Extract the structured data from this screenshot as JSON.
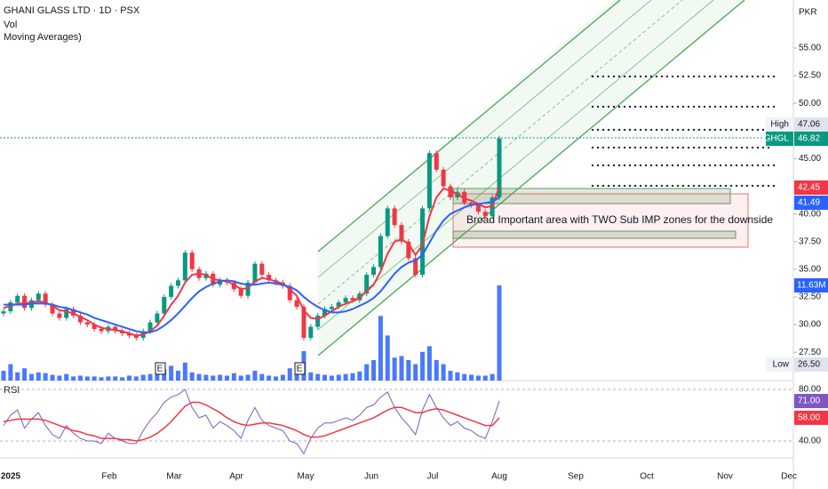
{
  "chart_data": {
    "type": "candlestick",
    "title": "GHANI GLASS LTD · 1D · PSX",
    "indicators": [
      "Vol",
      "Moving Averages)"
    ],
    "currency": "PKR",
    "first_open": 31.0,
    "series": [
      {
        "name": "GHGL",
        "up_color": "#089981",
        "down_color": "#f23645",
        "values": [
          31.2,
          32.0,
          32.6,
          31.5,
          32.2,
          32.8,
          31.8,
          31.0,
          30.6,
          31.4,
          30.8,
          30.2,
          30.0,
          29.6,
          29.4,
          29.8,
          29.4,
          29.2,
          29.0,
          28.8,
          29.4,
          30.2,
          31.0,
          32.5,
          33.5,
          34.0,
          36.5,
          35.0,
          34.2,
          34.6,
          33.6,
          34.0,
          33.8,
          33.2,
          32.6,
          33.8,
          35.5,
          34.5,
          34.0,
          33.8,
          33.5,
          32.2,
          31.6,
          28.8,
          29.8,
          30.8,
          31.4,
          31.6,
          32.0,
          32.4,
          32.2,
          32.8,
          34.5,
          35.2,
          38.0,
          40.5,
          39.0,
          37.5,
          36.0,
          34.5,
          40.5,
          45.5,
          44.0,
          42.5,
          41.5,
          42.0,
          41.0,
          40.8,
          40.2,
          39.8,
          41.5,
          46.82
        ]
      },
      {
        "color": "#f23645",
        "values": [
          31.5,
          31.7,
          31.9,
          31.9,
          32.0,
          32.1,
          32.0,
          31.7,
          31.3,
          31.2,
          31.0,
          30.7,
          30.4,
          30.0,
          29.7,
          29.6,
          29.5,
          29.4,
          29.2,
          29.0,
          29.1,
          29.4,
          29.9,
          30.8,
          31.8,
          32.6,
          33.8,
          34.5,
          34.6,
          34.5,
          34.1,
          34.0,
          33.9,
          33.6,
          33.2,
          33.3,
          33.9,
          34.2,
          34.1,
          33.9,
          33.7,
          33.2,
          32.6,
          31.3,
          30.6,
          30.5,
          30.8,
          31.2,
          31.6,
          31.9,
          32.1,
          32.4,
          33.0,
          33.6,
          34.8,
          36.4,
          37.5,
          37.7,
          37.3,
          36.3,
          37.2,
          39.8,
          41.5,
          42.3,
          42.1,
          41.8,
          41.4,
          41.2,
          40.9,
          40.6,
          40.7,
          42.45
        ]
      },
      {
        "color": "#2962ff",
        "values": [
          31.8,
          31.8,
          31.8,
          31.8,
          31.9,
          31.9,
          31.9,
          31.8,
          31.6,
          31.5,
          31.3,
          31.1,
          30.9,
          30.6,
          30.4,
          30.2,
          30.0,
          29.8,
          29.6,
          29.4,
          29.3,
          29.3,
          29.5,
          29.9,
          30.4,
          31.0,
          31.7,
          32.4,
          33.0,
          33.4,
          33.7,
          33.9,
          34.0,
          33.9,
          33.7,
          33.6,
          33.6,
          33.7,
          33.8,
          33.7,
          33.6,
          33.4,
          33.1,
          32.5,
          32.0,
          31.6,
          31.3,
          31.1,
          31.1,
          31.2,
          31.4,
          31.7,
          32.0,
          32.4,
          33.0,
          33.8,
          34.6,
          35.2,
          35.6,
          35.8,
          36.3,
          37.4,
          38.5,
          39.4,
          40.0,
          40.3,
          40.6,
          40.8,
          40.9,
          41.0,
          41.1,
          41.49
        ]
      }
    ],
    "volume": {
      "color": "#2962ff",
      "values": [
        1.2,
        2.0,
        1.0,
        1.5,
        0.8,
        1.0,
        0.9,
        0.7,
        0.6,
        0.8,
        0.5,
        0.6,
        0.5,
        0.5,
        0.4,
        0.5,
        0.5,
        0.4,
        0.6,
        0.5,
        0.7,
        0.8,
        1.0,
        1.4,
        1.8,
        1.2,
        2.2,
        1.0,
        0.8,
        0.7,
        0.6,
        0.7,
        0.6,
        0.9,
        0.6,
        0.7,
        1.2,
        0.8,
        0.6,
        0.5,
        0.7,
        1.5,
        1.8,
        3.6,
        1.0,
        0.8,
        0.7,
        0.6,
        0.7,
        0.8,
        0.9,
        1.1,
        2.0,
        2.5,
        7.9,
        5.5,
        2.8,
        3.0,
        2.5,
        2.0,
        3.5,
        4.2,
        2.5,
        2.0,
        1.2,
        1.0,
        0.8,
        0.7,
        0.6,
        0.6,
        0.8,
        11.63
      ],
      "last_label": "11.63M"
    },
    "ylim": [
      24.94,
      59.34
    ],
    "yticks": [
      {
        "value": 27.5,
        "label": "27.50"
      },
      {
        "value": 30,
        "label": "30.00"
      },
      {
        "value": 32.5,
        "label": "32.50"
      },
      {
        "value": 35,
        "label": "35.00"
      },
      {
        "value": 37.5,
        "label": "37.50"
      },
      {
        "value": 40,
        "label": "40.00"
      },
      {
        "value": 45,
        "label": "45.00"
      },
      {
        "value": 50,
        "label": "50.00"
      },
      {
        "value": 52.5,
        "label": "52.50"
      },
      {
        "value": 55,
        "label": "55.00"
      }
    ],
    "price_tags": [
      {
        "name": "High",
        "value": 47.06
      },
      {
        "name": "GHGL",
        "value": 46.82
      },
      {
        "value": 42.45
      },
      {
        "value": 41.49
      },
      {
        "name": "Low",
        "value": 26.5,
        "label": "26.50"
      }
    ],
    "events": [
      "E",
      "E"
    ],
    "annotation": "Broad Important area with TWO Sub IMP zones for the downside",
    "rsi": {
      "title": "RSI",
      "ylim": [
        26.9,
        86.9
      ],
      "yticks": [
        {
          "value": 80,
          "label": "80.00"
        },
        {
          "value": 40,
          "label": "40.00"
        }
      ],
      "series": [
        {
          "color": "#7e57c2",
          "values": [
            52,
            60,
            64,
            50,
            57,
            62,
            52,
            45,
            42,
            52,
            46,
            42,
            40,
            40,
            38,
            46,
            42,
            40,
            38,
            38,
            48,
            56,
            62,
            70,
            74,
            76,
            80,
            66,
            58,
            60,
            50,
            55,
            52,
            48,
            42,
            56,
            66,
            56,
            52,
            50,
            48,
            40,
            38,
            30,
            42,
            50,
            54,
            54,
            56,
            58,
            56,
            60,
            66,
            68,
            74,
            78,
            66,
            58,
            52,
            45,
            64,
            76,
            66,
            58,
            52,
            55,
            50,
            48,
            44,
            42,
            55,
            71
          ],
          "last_label": "71.00"
        },
        {
          "color": "#f23645",
          "values": [
            55,
            56,
            57,
            57,
            57,
            57,
            56,
            54,
            52,
            50,
            48,
            47,
            45,
            44,
            42,
            42,
            42,
            41,
            41,
            40,
            41,
            43,
            46,
            50,
            55,
            61,
            67,
            70,
            70,
            68,
            65,
            62,
            58,
            55,
            53,
            52,
            53,
            54,
            54,
            53,
            52,
            50,
            48,
            45,
            43,
            43,
            44,
            46,
            48,
            50,
            52,
            54,
            56,
            58,
            61,
            64,
            66,
            66,
            64,
            62,
            62,
            64,
            65,
            64,
            62,
            60,
            58,
            56,
            54,
            52,
            52,
            58
          ],
          "last_label": "58.00"
        }
      ]
    },
    "xlabels": [
      "2025",
      "Feb",
      "Mar",
      "Apr",
      "May",
      "Jun",
      "Jul",
      "Aug",
      "Sep",
      "Oct",
      "Nov",
      "Dec"
    ]
  }
}
